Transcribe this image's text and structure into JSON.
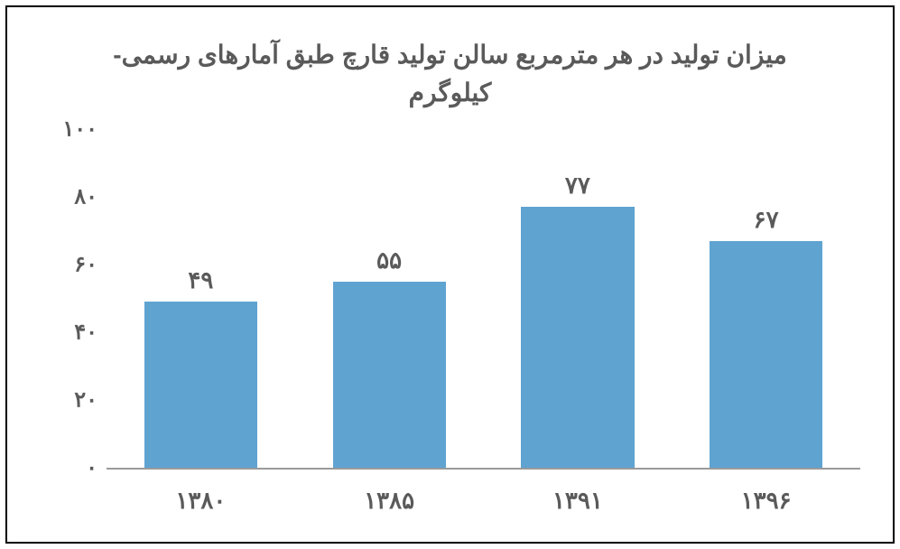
{
  "chart": {
    "type": "bar",
    "title_line1": "میزان تولید در هر مترمربع سالن تولید قارچ طبق آمارهای رسمی-",
    "title_line2": "کیلوگرم",
    "title_fontsize": 28,
    "title_color": "#5a5a5a",
    "categories": [
      "۱۳۸۰",
      "۱۳۸۵",
      "۱۳۹۱",
      "۱۳۹۶"
    ],
    "values": [
      49,
      55,
      77,
      67
    ],
    "value_labels": [
      "۴۹",
      "۵۵",
      "۷۷",
      "۶۷"
    ],
    "bar_color": "#5fa3d1",
    "bar_width_pct": 60,
    "ylim": [
      0,
      100
    ],
    "yticks": [
      0,
      20,
      40,
      60,
      80,
      100
    ],
    "ytick_labels": [
      "۰",
      "۲۰",
      "۴۰",
      "۶۰",
      "۸۰",
      "۱۰۰"
    ],
    "axis_label_fontsize": 24,
    "axis_label_color": "#5a5a5a",
    "axis_line_color": "#9a9a9a",
    "background_color": "#ffffff",
    "frame_border_color": "#000000"
  }
}
